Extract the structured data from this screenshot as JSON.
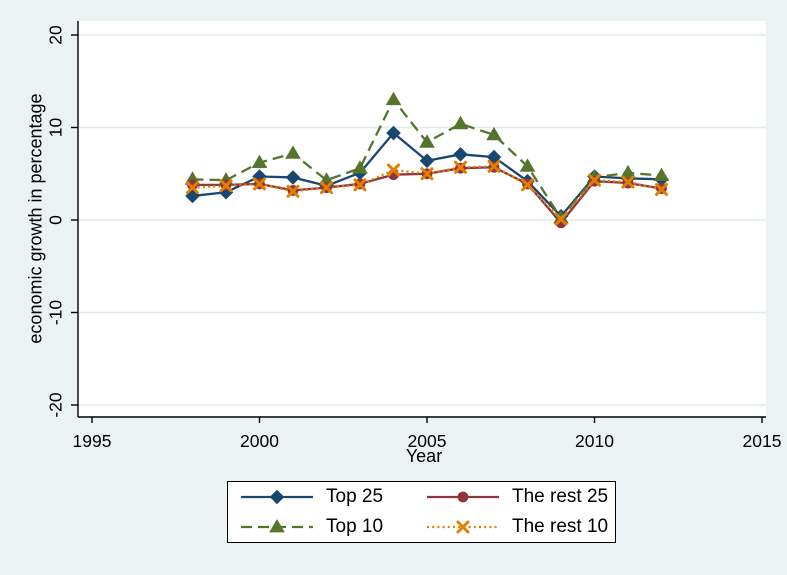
{
  "figure": {
    "background_color": "#eaf2f3",
    "plot_background_color": "#ffffff",
    "grid_color": "#e0ebee",
    "axis_color": "#000000",
    "legend_background_color": "#ffffff",
    "legend_border_color": "#000000"
  },
  "chart_data": {
    "type": "line",
    "title": "",
    "xlabel": "Year",
    "ylabel": "economic growth in percentage",
    "xlim": [
      1994.6,
      2015.1
    ],
    "ylim": [
      -21.3,
      21.5
    ],
    "x_ticks": [
      1995,
      2000,
      2005,
      2010,
      2015
    ],
    "y_ticks": [
      -20,
      -10,
      0,
      10,
      20
    ],
    "grid": true,
    "legend_position": "bottom",
    "x": [
      1998,
      1999,
      2000,
      2001,
      2002,
      2003,
      2004,
      2005,
      2006,
      2007,
      2008,
      2009,
      2010,
      2011,
      2012
    ],
    "series": [
      {
        "name": "Top 25",
        "color": "#1a476f",
        "marker": "diamond",
        "linestyle": "solid",
        "values": [
          2.6,
          3.0,
          4.7,
          4.6,
          3.7,
          5.1,
          9.4,
          6.4,
          7.1,
          6.8,
          4.2,
          0.4,
          4.7,
          4.5,
          4.4
        ]
      },
      {
        "name": "Top 10",
        "color": "#55752f",
        "marker": "triangle",
        "linestyle": "dashed",
        "values": [
          4.4,
          4.3,
          6.2,
          7.2,
          4.3,
          5.6,
          13.0,
          8.4,
          10.4,
          9.2,
          5.8,
          0.2,
          4.6,
          5.1,
          4.8
        ]
      },
      {
        "name": "The rest 25",
        "color": "#90353b",
        "marker": "circle",
        "linestyle": "solid",
        "values": [
          3.8,
          3.8,
          3.9,
          3.2,
          3.5,
          3.9,
          4.9,
          5.0,
          5.6,
          5.7,
          3.9,
          -0.3,
          4.2,
          4.0,
          3.4
        ]
      },
      {
        "name": "The rest 10",
        "color": "#e37e00",
        "marker": "x",
        "linestyle": "dotted",
        "values": [
          3.5,
          3.7,
          3.9,
          3.1,
          3.5,
          3.8,
          5.4,
          5.0,
          5.7,
          5.8,
          3.8,
          0.1,
          4.3,
          4.1,
          3.3
        ]
      }
    ],
    "legend_order": [
      0,
      2,
      1,
      3
    ]
  }
}
